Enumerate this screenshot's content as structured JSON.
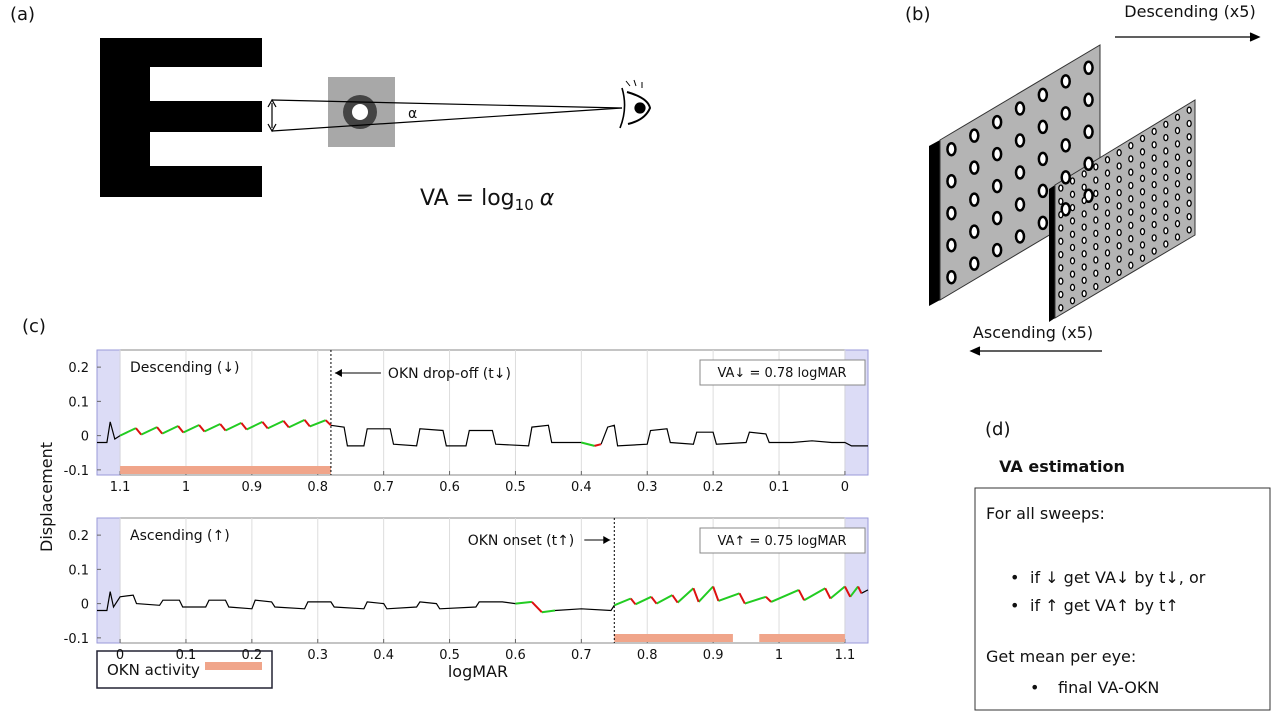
{
  "panel_a": {
    "label": "(a)",
    "alpha": "α",
    "formula": "VA = log",
    "formula_sub": "10",
    "formula_var": "α"
  },
  "panel_b": {
    "label": "(b)",
    "top_arrow": "Descending (x5)",
    "bottom_arrow": "Ascending (x5)"
  },
  "panel_c": {
    "label": "(c)",
    "y_label": "Displacement",
    "x_label": "logMAR",
    "legend": "OKN activity",
    "legend_color": "#f0a58a",
    "charts": [
      {
        "type": "line",
        "grid": "x",
        "annotations": {
          "title": "Descending (↓)",
          "event": "OKN drop-off (t↓)",
          "va": "VA↓ = 0.78 logMAR"
        },
        "xlim": [
          1.135,
          -0.035
        ],
        "ylim": [
          -0.115,
          0.25
        ],
        "xticks": [
          1.1,
          1,
          0.9,
          0.8,
          0.7,
          0.6,
          0.5,
          0.4,
          0.3,
          0.2,
          0.1,
          0
        ],
        "yticks": [
          -0.1,
          0,
          0.1,
          0.2
        ],
        "shaded": [
          [
            1.135,
            1.1
          ],
          [
            0,
            -0.035
          ]
        ],
        "bands": [
          [
            1.1,
            0.78
          ]
        ],
        "marker_x": 0.78,
        "series": [
          {
            "color": "#000000",
            "x": [
              1.135,
              1.12,
              1.115,
              1.108,
              1.1,
              null,
              0.78,
              0.76,
              0.755,
              0.73,
              0.725,
              0.69,
              0.685,
              0.65,
              0.645,
              0.61,
              0.605,
              0.575,
              0.57,
              0.535,
              0.53,
              0.48,
              0.475,
              0.45,
              0.445,
              0.4,
              null,
              0.37,
              0.36,
              0.35,
              0.345,
              0.3,
              0.295,
              0.27,
              0.265,
              0.23,
              0.225,
              0.2,
              0.195,
              0.15,
              0.145,
              0.12,
              0.115,
              0.08,
              0.05,
              0.02,
              0,
              -0.01,
              -0.035
            ],
            "values": [
              -0.02,
              -0.02,
              0.04,
              -0.01,
              0,
              null,
              0.03,
              0.025,
              -0.03,
              -0.03,
              0.02,
              0.02,
              -0.025,
              -0.03,
              0.02,
              0.015,
              -0.03,
              -0.03,
              0.015,
              0.015,
              -0.025,
              -0.03,
              0.025,
              0.03,
              -0.02,
              -0.02,
              null,
              -0.025,
              0.025,
              0.03,
              -0.03,
              -0.025,
              0.015,
              0.02,
              -0.02,
              -0.025,
              0.01,
              0.01,
              -0.025,
              -0.02,
              0.01,
              0.005,
              -0.02,
              -0.02,
              -0.015,
              -0.02,
              -0.02,
              -0.03,
              -0.03
            ]
          },
          {
            "color": "#22cc22",
            "x": [
              1.1,
              1.076,
              null,
              1.068,
              1.044,
              null,
              1.036,
              1.012,
              null,
              1.004,
              0.98,
              null,
              0.972,
              0.948,
              null,
              0.94,
              0.916,
              null,
              0.908,
              0.884,
              null,
              0.876,
              0.852,
              null,
              0.844,
              0.82,
              null,
              0.812,
              0.788,
              null,
              0.4,
              0.38
            ],
            "values": [
              0,
              0.022,
              null,
              0.003,
              0.025,
              null,
              0.006,
              0.028,
              null,
              0.009,
              0.031,
              null,
              0.012,
              0.034,
              null,
              0.015,
              0.037,
              null,
              0.018,
              0.04,
              null,
              0.021,
              0.043,
              null,
              0.024,
              0.046,
              null,
              0.027,
              0.045,
              null,
              -0.02,
              -0.03
            ]
          },
          {
            "color": "#dd1111",
            "x": [
              1.076,
              1.068,
              null,
              1.044,
              1.036,
              null,
              1.012,
              1.004,
              null,
              0.98,
              0.972,
              null,
              0.948,
              0.94,
              null,
              0.916,
              0.908,
              null,
              0.884,
              0.876,
              null,
              0.852,
              0.844,
              null,
              0.82,
              0.812,
              null,
              0.788,
              0.78,
              null,
              0.38,
              0.37
            ],
            "values": [
              0.022,
              0.003,
              null,
              0.025,
              0.006,
              null,
              0.028,
              0.009,
              null,
              0.031,
              0.012,
              null,
              0.034,
              0.015,
              null,
              0.037,
              0.018,
              null,
              0.04,
              0.021,
              null,
              0.043,
              0.024,
              null,
              0.046,
              0.027,
              null,
              0.045,
              0.03,
              null,
              -0.03,
              -0.025
            ]
          }
        ]
      },
      {
        "type": "line",
        "grid": "x",
        "annotations": {
          "title": "Ascending (↑)",
          "event": "OKN onset (t↑)",
          "va": "VA↑ = 0.75 logMAR"
        },
        "xlim": [
          -0.035,
          1.135
        ],
        "ylim": [
          -0.115,
          0.25
        ],
        "xticks": [
          0,
          0.1,
          0.2,
          0.3,
          0.4,
          0.5,
          0.6,
          0.7,
          0.8,
          0.9,
          1,
          1.1
        ],
        "yticks": [
          -0.1,
          0,
          0.1,
          0.2
        ],
        "shaded": [
          [
            -0.035,
            0
          ],
          [
            1.1,
            1.135
          ]
        ],
        "bands": [
          [
            0.75,
            0.93
          ],
          [
            0.97,
            1.1
          ]
        ],
        "marker_x": 0.75,
        "series": [
          {
            "color": "#000000",
            "x": [
              -0.035,
              -0.02,
              -0.015,
              -0.01,
              0,
              0.02,
              0.025,
              0.06,
              0.065,
              0.09,
              0.095,
              0.13,
              0.135,
              0.16,
              0.165,
              0.2,
              0.205,
              0.23,
              0.235,
              0.28,
              0.285,
              0.32,
              0.325,
              0.37,
              0.375,
              0.4,
              0.405,
              0.45,
              0.455,
              0.48,
              0.485,
              0.54,
              0.545,
              0.58,
              0.6,
              null,
              0.66,
              0.7,
              0.745,
              0.75,
              null,
              1.125,
              1.135
            ],
            "values": [
              -0.02,
              -0.02,
              0.035,
              -0.01,
              0.02,
              0.025,
              0,
              -0.005,
              0.01,
              0.01,
              -0.01,
              -0.01,
              0.01,
              0.01,
              -0.01,
              -0.015,
              0.01,
              0.005,
              -0.01,
              -0.015,
              0.005,
              0.005,
              -0.01,
              -0.015,
              0.005,
              0,
              -0.015,
              -0.01,
              0.005,
              0,
              -0.015,
              -0.01,
              0.005,
              0.005,
              0,
              null,
              -0.02,
              -0.015,
              -0.02,
              -0.005,
              null,
              0.03,
              0.04
            ]
          },
          {
            "color": "#22cc22",
            "x": [
              0.6,
              0.625,
              null,
              0.64,
              0.66,
              null,
              0.75,
              0.775,
              null,
              0.782,
              0.806,
              null,
              0.814,
              0.838,
              null,
              0.846,
              0.87,
              null,
              0.878,
              0.9,
              null,
              0.908,
              0.94,
              null,
              0.948,
              0.98,
              null,
              0.988,
              1.03,
              null,
              1.038,
              1.07,
              null,
              1.078,
              1.1,
              null,
              1.108,
              1.12
            ],
            "values": [
              0,
              0.005,
              null,
              -0.025,
              -0.02,
              null,
              -0.005,
              0.015,
              null,
              -0.002,
              0.02,
              null,
              0,
              0.025,
              null,
              0.003,
              0.045,
              null,
              0.005,
              0.05,
              null,
              0.008,
              0.03,
              null,
              0,
              0.02,
              null,
              0.005,
              0.04,
              null,
              0.01,
              0.045,
              null,
              0.015,
              0.05,
              null,
              0.02,
              0.05
            ]
          },
          {
            "color": "#dd1111",
            "x": [
              0.625,
              0.64,
              null,
              0.775,
              0.782,
              null,
              0.806,
              0.814,
              null,
              0.838,
              0.846,
              null,
              0.87,
              0.878,
              null,
              0.9,
              0.908,
              null,
              0.94,
              0.948,
              null,
              0.98,
              0.988,
              null,
              1.03,
              1.038,
              null,
              1.07,
              1.078,
              null,
              1.1,
              1.108,
              null,
              1.12,
              1.125
            ],
            "values": [
              0.005,
              -0.025,
              null,
              0.015,
              -0.002,
              null,
              0.02,
              0,
              null,
              0.025,
              0.003,
              null,
              0.045,
              0.005,
              null,
              0.05,
              0.008,
              null,
              0.03,
              0,
              null,
              0.02,
              0.005,
              null,
              0.04,
              0.01,
              null,
              0.045,
              0.015,
              null,
              0.05,
              0.02,
              null,
              0.05,
              0.03
            ]
          }
        ]
      }
    ]
  },
  "panel_d": {
    "label": "(d)",
    "title": "VA estimation",
    "box_title": "For all sweeps:",
    "bullets": [
      "if ↓ get VA↓ by t↓, or",
      "if ↑  get VA↑ by t↑"
    ],
    "mean_title": "Get mean per eye:",
    "mean_bullet": "final VA-OKN"
  }
}
